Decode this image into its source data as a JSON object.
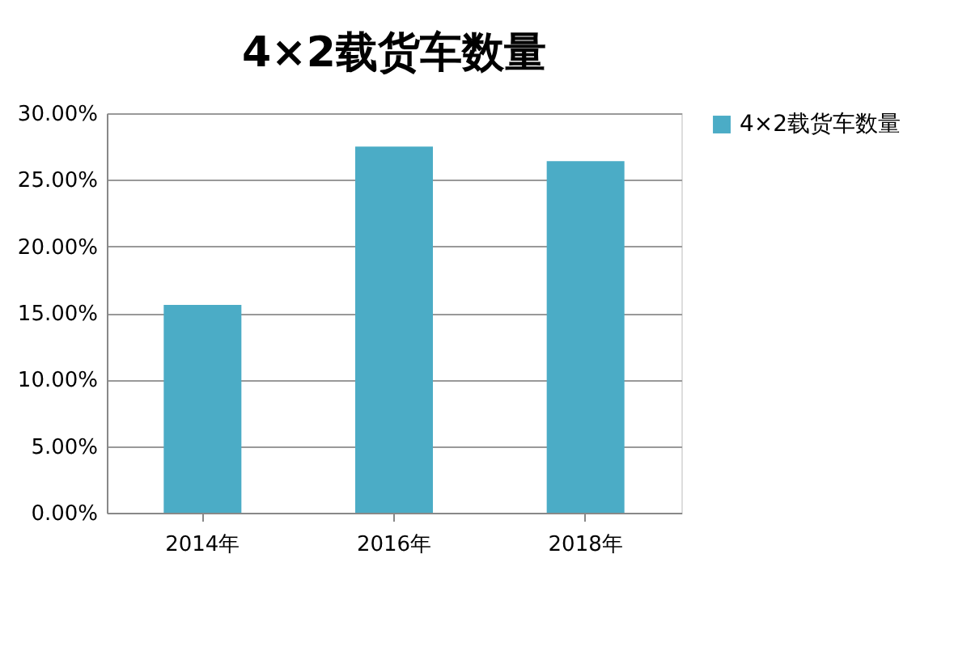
{
  "chart_data": {
    "type": "bar",
    "title": "4×2载货车数量",
    "categories": [
      "2014年",
      "2016年",
      "2018年"
    ],
    "series": [
      {
        "name": "4×2载货车数量",
        "color": "#4bacc6",
        "values": [
          15.6,
          27.5,
          26.4
        ]
      }
    ],
    "ylim": [
      0,
      30
    ],
    "yticks": [
      {
        "value": 0,
        "label": "0.00%"
      },
      {
        "value": 5,
        "label": "5.00%"
      },
      {
        "value": 10,
        "label": "10.00%"
      },
      {
        "value": 15,
        "label": "15.00%"
      },
      {
        "value": 20,
        "label": "20.00%"
      },
      {
        "value": 25,
        "label": "25.00%"
      },
      {
        "value": 30,
        "label": "30.00%"
      }
    ],
    "grid": "y",
    "legend": "right"
  }
}
